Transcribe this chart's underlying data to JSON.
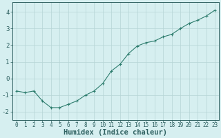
{
  "x": [
    0,
    1,
    2,
    3,
    4,
    5,
    6,
    7,
    8,
    9,
    10,
    11,
    12,
    13,
    14,
    15,
    16,
    17,
    18,
    19,
    20,
    21,
    22,
    23
  ],
  "y": [
    -0.75,
    -0.85,
    -0.75,
    -1.35,
    -1.75,
    -1.75,
    -1.55,
    -1.35,
    -1.0,
    -0.75,
    -0.3,
    0.45,
    0.85,
    1.5,
    1.95,
    2.15,
    2.25,
    2.5,
    2.65,
    3.0,
    3.3,
    3.5,
    3.75,
    4.1
  ],
  "line_color": "#2e7d6e",
  "marker": "P",
  "marker_size": 2.5,
  "bg_color": "#d6eff0",
  "grid_color": "#b5d5d5",
  "xlabel": "Humidex (Indice chaleur)",
  "ylim": [
    -2.5,
    4.6
  ],
  "xlim": [
    -0.5,
    23.5
  ],
  "yticks": [
    -2,
    -1,
    0,
    1,
    2,
    3,
    4
  ],
  "xticks": [
    0,
    1,
    2,
    3,
    4,
    5,
    6,
    7,
    8,
    9,
    10,
    11,
    12,
    13,
    14,
    15,
    16,
    17,
    18,
    19,
    20,
    21,
    22,
    23
  ],
  "tick_labelsize": 5.5,
  "ytick_labelsize": 6.5,
  "xlabel_fontsize": 7.5,
  "label_color": "#2e6060"
}
